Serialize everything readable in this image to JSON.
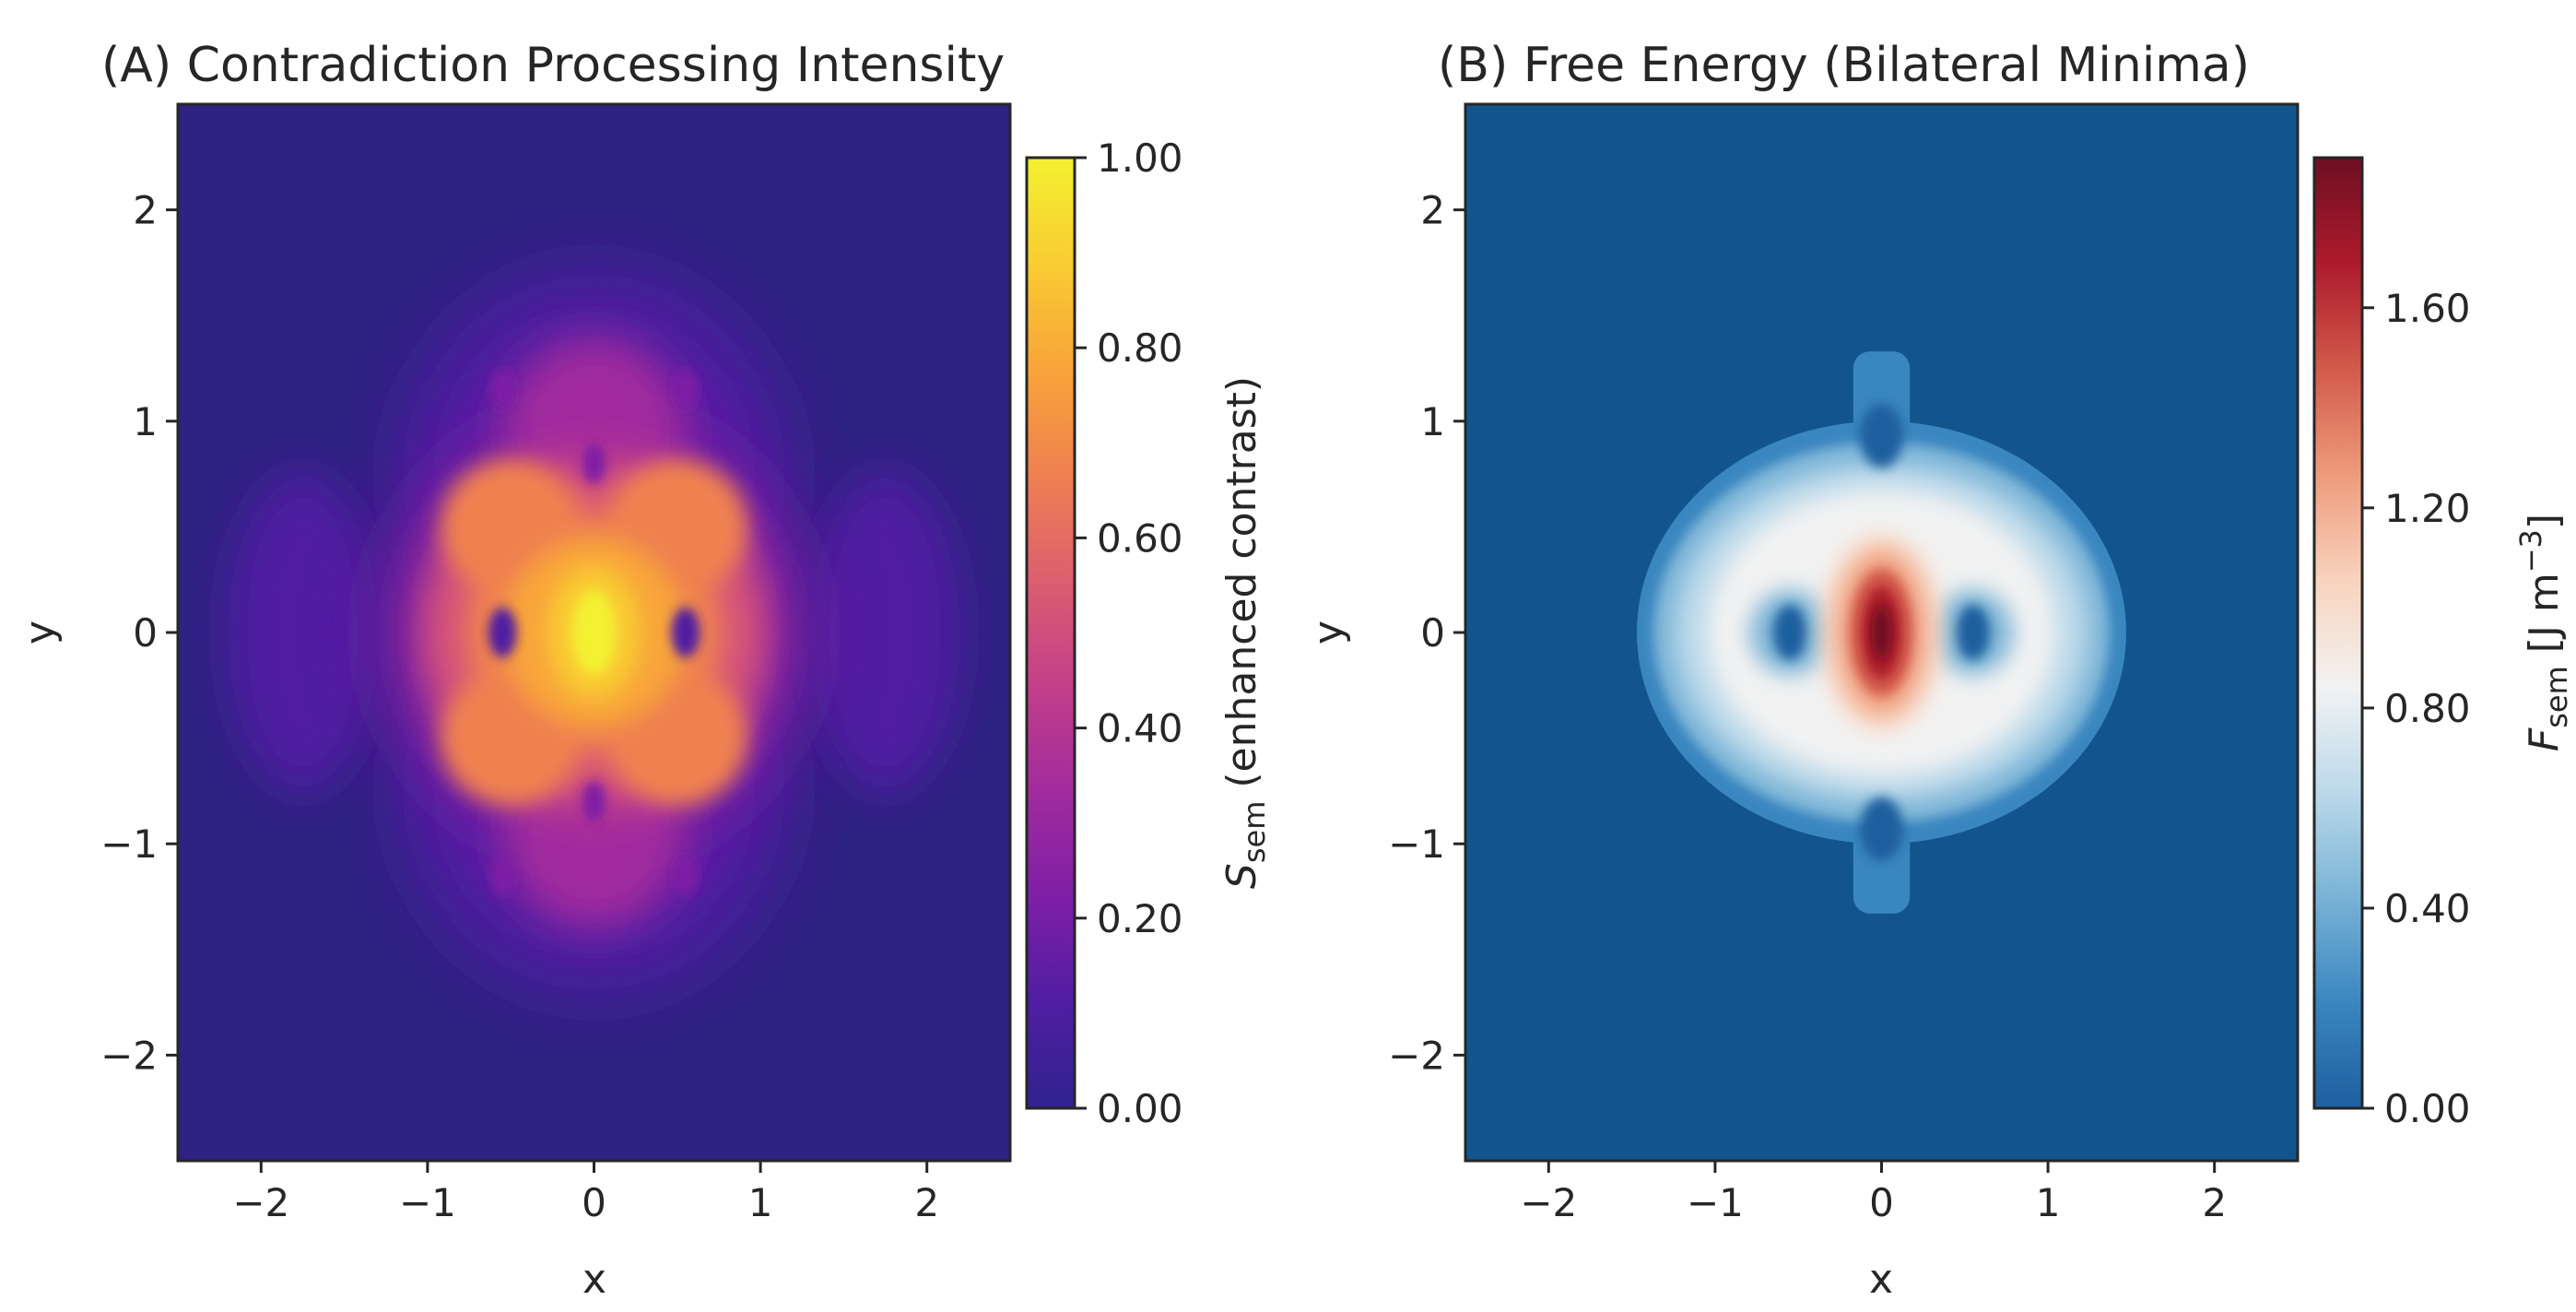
{
  "chart_data": [
    {
      "type": "heatmap",
      "title": "(A) Contradiction Processing Intensity",
      "xlabel": "x",
      "ylabel": "y",
      "xlim": [
        -2.5,
        2.5
      ],
      "ylim": [
        -2.5,
        2.5
      ],
      "x_ticks": [
        -2,
        -1,
        0,
        1,
        2
      ],
      "x_tick_labels": [
        "−2",
        "−1",
        "0",
        "1",
        "2"
      ],
      "y_ticks": [
        2,
        1,
        0,
        -1,
        -2
      ],
      "y_tick_labels": [
        "2",
        "1",
        "0",
        "−1",
        "−2"
      ],
      "colormap": "plasma",
      "colorbar": {
        "label_main": "S",
        "label_sub": "sem",
        "label_rest": " (enhanced contrast)",
        "range": [
          0,
          1
        ],
        "ticks": [
          0,
          0.2,
          0.4,
          0.6,
          0.8,
          1.0
        ],
        "tick_labels": [
          "0.00",
          "0.20",
          "0.40",
          "0.60",
          "0.80",
          "1.00"
        ],
        "stops": [
          "#30238f",
          "#4f1ea2",
          "#7e1fa6",
          "#a12b9e",
          "#c33f8a",
          "#dc5e6f",
          "#ef8150",
          "#f8a43a",
          "#f9cc33",
          "#f3f130"
        ]
      },
      "features": {
        "peak": {
          "x": 0.0,
          "y": 0.0,
          "value": 1.0
        },
        "lobe_centers": [
          [
            -0.5,
            0.5
          ],
          [
            0.5,
            0.5
          ],
          [
            -0.5,
            -0.5
          ],
          [
            0.5,
            -0.5
          ]
        ],
        "dark_spots": [
          [
            -0.55,
            0.0
          ],
          [
            0.55,
            0.0
          ],
          [
            0.0,
            0.8
          ],
          [
            0.0,
            -0.8
          ],
          [
            -0.55,
            1.15
          ],
          [
            0.55,
            1.15
          ],
          [
            -0.55,
            -1.15
          ],
          [
            0.55,
            -1.15
          ]
        ],
        "background_value": 0.05
      }
    },
    {
      "type": "heatmap",
      "title": "(B) Free Energy (Bilateral Minima)",
      "xlabel": "x",
      "ylabel": "y",
      "xlim": [
        -2.5,
        2.5
      ],
      "ylim": [
        -2.5,
        2.5
      ],
      "x_ticks": [
        -2,
        -1,
        0,
        1,
        2
      ],
      "x_tick_labels": [
        "−2",
        "−1",
        "0",
        "1",
        "2"
      ],
      "y_ticks": [
        2,
        1,
        0,
        -1,
        -2
      ],
      "y_tick_labels": [
        "2",
        "1",
        "0",
        "−1",
        "−2"
      ],
      "colormap": "RdBu_r",
      "colorbar": {
        "label_main": "F",
        "label_sub": "sem",
        "label_rest": " [J m",
        "label_sup": "−3",
        "label_end": "]",
        "range": [
          0,
          1.9
        ],
        "ticks": [
          0,
          0.4,
          0.8,
          1.2,
          1.6
        ],
        "tick_labels": [
          "0.00",
          "0.40",
          "0.80",
          "1.20",
          "1.60"
        ],
        "stops": [
          "#1d5f9f",
          "#3a86c0",
          "#79b3d6",
          "#bcd9ea",
          "#f2f2f2",
          "#f8d3bd",
          "#ee9b7c",
          "#d25a4b",
          "#ad1a2c",
          "#6d0f22"
        ]
      },
      "features": {
        "peak": {
          "x": 0.0,
          "y": 0.0,
          "value": 1.9
        },
        "minima": [
          [
            -0.55,
            0.0
          ],
          [
            0.55,
            0.0
          ]
        ],
        "plateau_value": 0.55,
        "background_value": 0.0
      }
    }
  ]
}
